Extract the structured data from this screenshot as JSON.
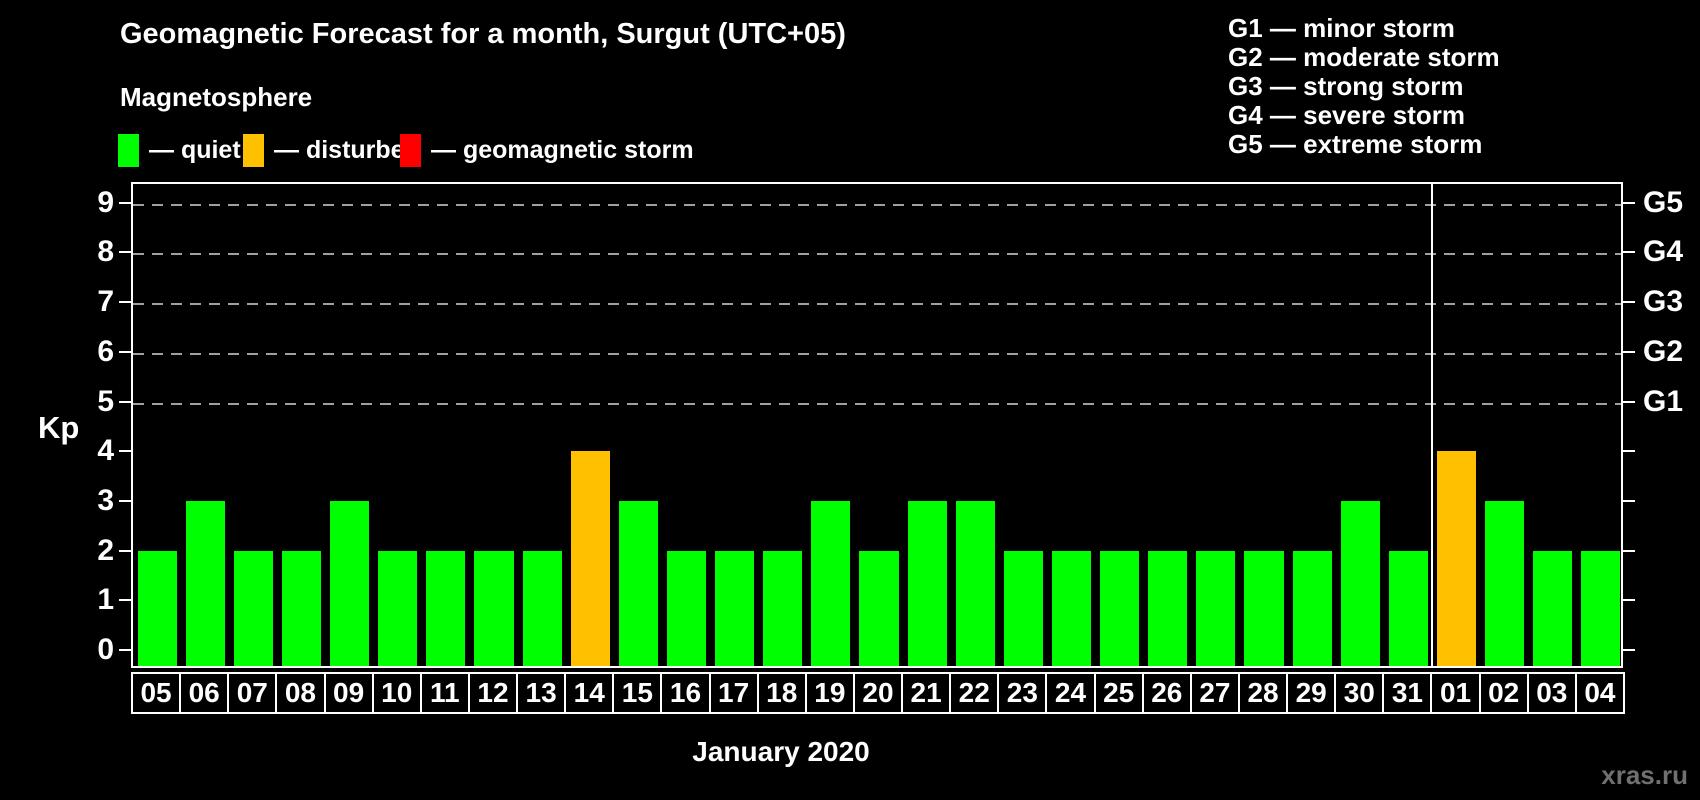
{
  "title": "Geomagnetic Forecast for a month, Surgut (UTC+05)",
  "subtitle": "Magnetosphere",
  "watermark": "xras.ru",
  "colors": {
    "quiet": "#00ff00",
    "disturbed": "#ffc000",
    "storm": "#ff0000",
    "axis": "#ffffff",
    "gridline": "#a0a0a0",
    "background": "#000000",
    "watermark_gray": "#707070"
  },
  "legend": {
    "items": [
      {
        "status": "quiet",
        "label": "— quiet",
        "color": "#00ff00"
      },
      {
        "status": "disturbed",
        "label": "— disturbed",
        "color": "#ffc000"
      },
      {
        "status": "storm",
        "label": "— geomagnetic storm",
        "color": "#ff0000"
      }
    ]
  },
  "g_legend": [
    "G1 — minor storm",
    "G2 — moderate storm",
    "G3 — strong storm",
    "G4 — severe storm",
    "G5 — extreme storm"
  ],
  "chart_data": {
    "type": "bar",
    "title": "Geomagnetic Forecast for a month, Surgut (UTC+05)",
    "xlabel": "January 2020",
    "ylabel": "Kp",
    "ylim": [
      -0.36,
      9.42
    ],
    "grid": "dashed horizontal at Kp 5-9",
    "legend_position": "top-left",
    "categories": [
      "05",
      "06",
      "07",
      "08",
      "09",
      "10",
      "11",
      "12",
      "13",
      "14",
      "15",
      "16",
      "17",
      "18",
      "19",
      "20",
      "21",
      "22",
      "23",
      "24",
      "25",
      "26",
      "27",
      "28",
      "29",
      "30",
      "31",
      "01",
      "02",
      "03",
      "04"
    ],
    "values": [
      2,
      3,
      2,
      2,
      3,
      2,
      2,
      2,
      2,
      4,
      3,
      2,
      2,
      2,
      3,
      2,
      3,
      3,
      2,
      2,
      2,
      2,
      2,
      2,
      2,
      3,
      2,
      4,
      3,
      2,
      2
    ],
    "statuses": [
      "quiet",
      "quiet",
      "quiet",
      "quiet",
      "quiet",
      "quiet",
      "quiet",
      "quiet",
      "quiet",
      "disturbed",
      "quiet",
      "quiet",
      "quiet",
      "quiet",
      "quiet",
      "quiet",
      "quiet",
      "quiet",
      "quiet",
      "quiet",
      "quiet",
      "quiet",
      "quiet",
      "quiet",
      "quiet",
      "quiet",
      "quiet",
      "disturbed",
      "quiet",
      "quiet",
      "quiet"
    ],
    "left_ticks": [
      "0",
      "1",
      "2",
      "3",
      "4",
      "5",
      "6",
      "7",
      "8",
      "9"
    ],
    "gridline_levels": [
      5,
      6,
      7,
      8,
      9
    ],
    "right_axis": {
      "labels": [
        "G1",
        "G2",
        "G3",
        "G4",
        "G5"
      ],
      "kp_levels": [
        5,
        6,
        7,
        8,
        9
      ]
    },
    "separator_after_index": 26
  }
}
